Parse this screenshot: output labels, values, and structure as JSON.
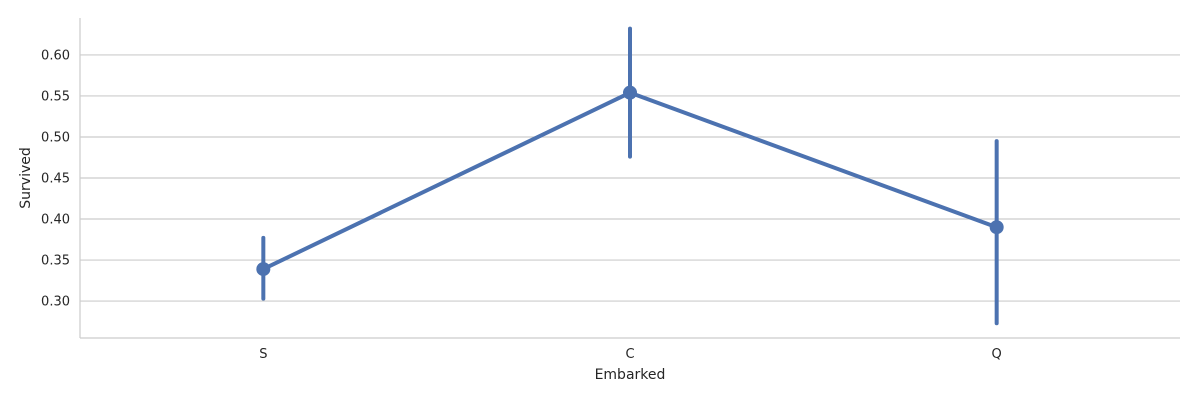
{
  "chart_data": {
    "type": "line",
    "title": "",
    "xlabel": "Embarked",
    "ylabel": "Survived",
    "categories": [
      "S",
      "C",
      "Q"
    ],
    "values": [
      0.339,
      0.554,
      0.39
    ],
    "error_bars": [
      [
        0.303,
        0.377
      ],
      [
        0.476,
        0.632
      ],
      [
        0.273,
        0.495
      ]
    ],
    "ylim": [
      0.255,
      0.645
    ],
    "yticks": [
      0.3,
      0.35,
      0.4,
      0.45,
      0.5,
      0.55,
      0.6
    ],
    "ytick_labels": [
      "0.30",
      "0.35",
      "0.40",
      "0.45",
      "0.50",
      "0.55",
      "0.60"
    ],
    "grid": "horizontal",
    "legend": "none",
    "colors": {
      "series": "#4c72b0",
      "grid": "#cccccc",
      "spine": "#cccccc"
    }
  }
}
